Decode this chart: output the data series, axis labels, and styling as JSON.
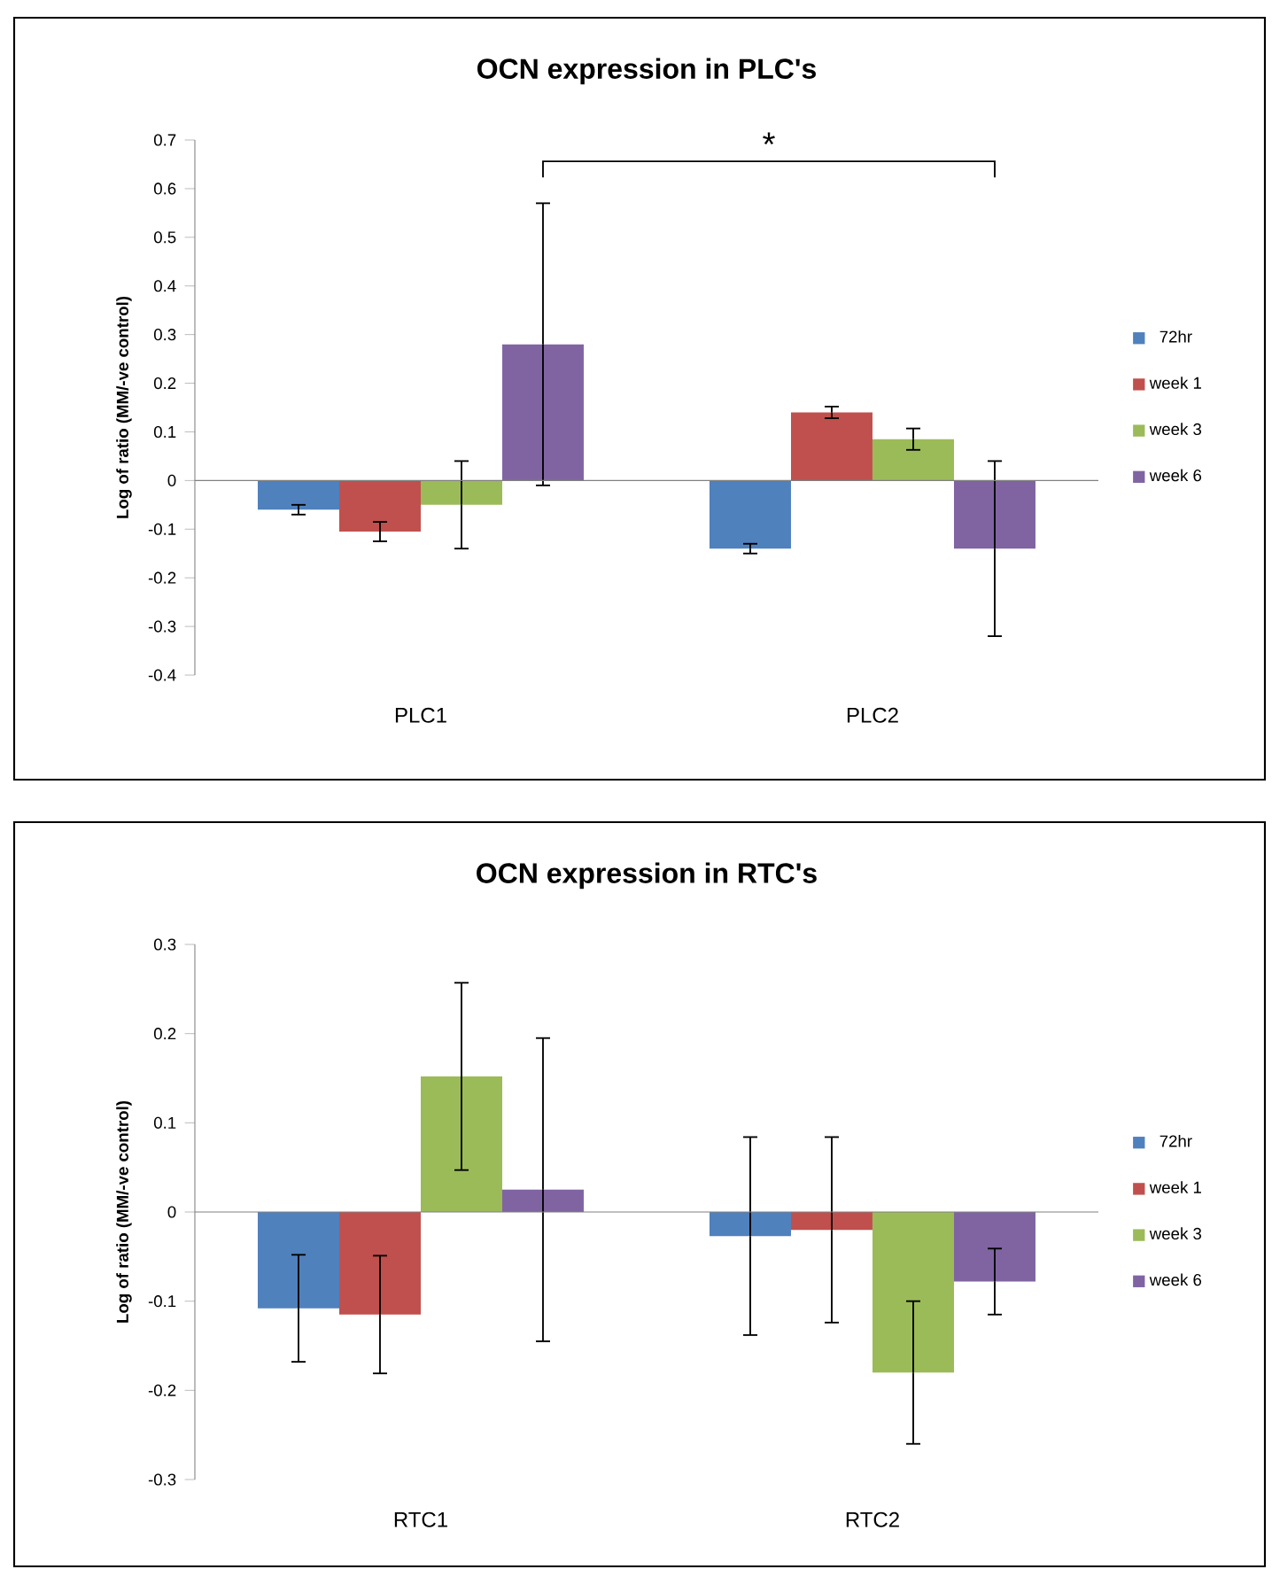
{
  "chart_data": [
    {
      "type": "bar",
      "title": "OCN expression in PLC's",
      "ylabel": "Log of ratio (MM/-ve control)",
      "categories": [
        "PLC1",
        "PLC2"
      ],
      "ylim": [
        -0.4,
        0.7
      ],
      "yticks": [
        -0.4,
        -0.3,
        -0.2,
        -0.1,
        0,
        0.1,
        0.2,
        0.3,
        0.4,
        0.5,
        0.6,
        0.7
      ],
      "legend": "right",
      "annotations": [
        "*"
      ],
      "series": [
        {
          "name": "72hr",
          "color": "#4f81bd",
          "values": [
            -0.06,
            -0.14
          ],
          "errors": [
            0.01,
            0.01
          ]
        },
        {
          "name": "week 1",
          "color": "#c0504d",
          "values": [
            -0.105,
            0.14
          ],
          "errors": [
            0.02,
            0.012
          ]
        },
        {
          "name": "week 3",
          "color": "#9bbb59",
          "values": [
            -0.05,
            0.085
          ],
          "errors": [
            0.09,
            0.022
          ]
        },
        {
          "name": "week 6",
          "color": "#8064a2",
          "values": [
            0.28,
            -0.14
          ],
          "errors": [
            0.29,
            0.18
          ]
        }
      ]
    },
    {
      "type": "bar",
      "title": "OCN expression in RTC's",
      "ylabel": "Log of ratio (MM/-ve control)",
      "categories": [
        "RTC1",
        "RTC2"
      ],
      "ylim": [
        -0.3,
        0.3
      ],
      "yticks": [
        -0.3,
        -0.2,
        -0.1,
        0,
        0.1,
        0.2,
        0.3
      ],
      "legend": "right",
      "series": [
        {
          "name": "72hr",
          "color": "#4f81bd",
          "values": [
            -0.108,
            -0.027
          ],
          "errors": [
            0.06,
            0.111
          ]
        },
        {
          "name": "week 1",
          "color": "#c0504d",
          "values": [
            -0.115,
            -0.02
          ],
          "errors": [
            0.066,
            0.104
          ]
        },
        {
          "name": "week 3",
          "color": "#9bbb59",
          "values": [
            0.152,
            -0.18
          ],
          "errors": [
            0.105,
            0.08
          ]
        },
        {
          "name": "week 6",
          "color": "#8064a2",
          "values": [
            0.025,
            -0.078
          ],
          "errors": [
            0.17,
            0.037
          ]
        }
      ]
    }
  ]
}
